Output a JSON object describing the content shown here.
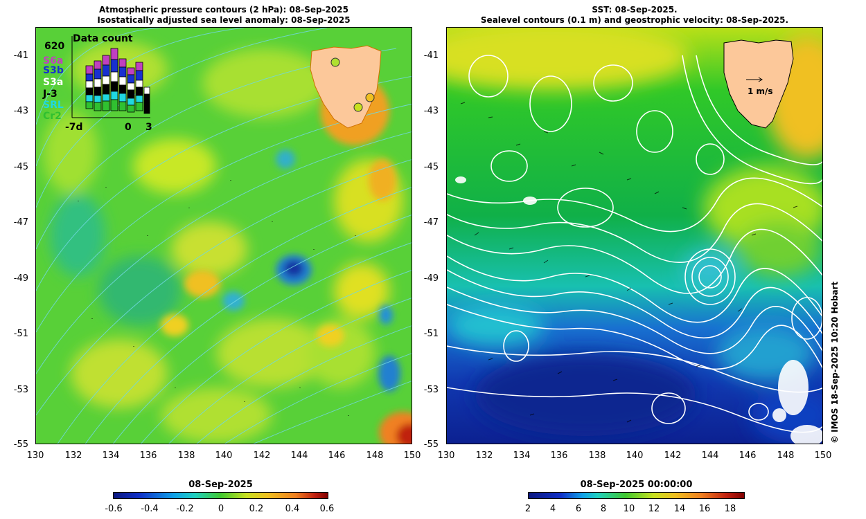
{
  "left_panel": {
    "title_line1": "Atmospheric pressure contours (2 hPa): 08-Sep-2025",
    "title_line2": "Isostatically adjusted sea level anomaly: 08-Sep-2025",
    "legend": {
      "title": "Data count",
      "max_count": "620",
      "satellites": [
        {
          "label": "S6a",
          "color": "#c040c0"
        },
        {
          "label": "S3b",
          "color": "#1830d0"
        },
        {
          "label": "S3a",
          "color": "#ffffff"
        },
        {
          "label": "J-3",
          "color": "#000000"
        },
        {
          "label": "SRL",
          "color": "#20d8e0"
        },
        {
          "label": "Cr2",
          "color": "#30c030"
        }
      ],
      "x_start": "-7d",
      "x_zero": "0",
      "x_end": "3"
    },
    "colorbar": {
      "title": "08-Sep-2025",
      "ticks": [
        "-0.6",
        "-0.4",
        "-0.2",
        "0",
        "0.2",
        "0.4",
        "0.6"
      ]
    }
  },
  "right_panel": {
    "title_line1": "SST: 08-Sep-2025.",
    "title_line2": "Sealevel contours (0.1 m) and geostrophic velocity: 08-Sep-2025.",
    "velocity_label": "1 m/s",
    "colorbar": {
      "title": "08-Sep-2025 00:00:00",
      "ticks": [
        "2",
        "4",
        "6",
        "8",
        "10",
        "12",
        "14",
        "16",
        "18"
      ]
    }
  },
  "axes": {
    "lat_ticks": [
      "-41",
      "-43",
      "-45",
      "-47",
      "-49",
      "-51",
      "-53",
      "-55"
    ],
    "lon_ticks": [
      "130",
      "132",
      "134",
      "136",
      "138",
      "140",
      "142",
      "144",
      "146",
      "148",
      "150"
    ]
  },
  "credit": "© IMOS 18-Sep-2025 10:20 Hobart",
  "colors": {
    "land": "#fcc89a",
    "sla_background": "#58d038",
    "sst_north": "#a8e020",
    "sst_mid": "#18b838",
    "sst_south": "#1030b0"
  }
}
